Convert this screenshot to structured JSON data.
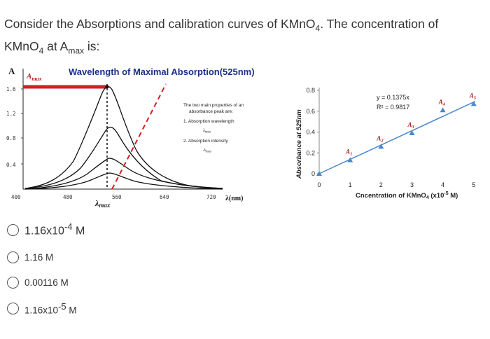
{
  "question": {
    "line1_pre": "Consider the Absorptions and calibration curves of KMnO",
    "line1_sub": "4",
    "line1_post": ". The concentration of",
    "line2_pre": "KMnO",
    "line2_sub": "4",
    "line2_mid": " at A",
    "line2_sub2": "max",
    "line2_post": " is:"
  },
  "spectrum_figure": {
    "title": "Wavelength of Maximal Absorption(525nm)",
    "y_axis_letter": "A",
    "amax_label": "A",
    "amax_sub": "max",
    "y_ticks": [
      "1.6",
      "1.2",
      "0.8",
      "0.4"
    ],
    "x_ticks": [
      "400",
      "480",
      "560",
      "640",
      "720"
    ],
    "x_unit": "λ(nm)",
    "lambda_max_label": "λ",
    "lambda_max_sub": "max",
    "note_line1": "The two main properties of an",
    "note_line2": "absorbance peak are:",
    "note_line3": "1.  Absorption wavelength",
    "note_line4": "λ",
    "note_line4_sub": "max",
    "note_line5": "2.  Absorption intensity",
    "note_line6": "A",
    "note_line6_sub": "max",
    "colors": {
      "title": "#1a2f8a",
      "red": "#d32020",
      "amax": "#b31b1b"
    }
  },
  "chart_data": {
    "type": "scatter",
    "xlabel_pre": "Cncentration of KMnO",
    "xlabel_sub": "4",
    "xlabel_mid": " (x10",
    "xlabel_sup": "-5",
    "xlabel_post": " M)",
    "ylabel": "Absorbance at 525nm",
    "x_ticks": [
      "0",
      "1",
      "2",
      "3",
      "4",
      "5"
    ],
    "y_ticks": [
      "0",
      "0.2",
      "0.4",
      "0.6",
      "0.8"
    ],
    "xlim": [
      0,
      5.3
    ],
    "ylim": [
      0,
      0.8
    ],
    "points": [
      {
        "label": "",
        "x": 0,
        "y": 0
      },
      {
        "label": "A1",
        "x": 1,
        "y": 0.13
      },
      {
        "label": "A2",
        "x": 2,
        "y": 0.26
      },
      {
        "label": "A3",
        "x": 3,
        "y": 0.39
      },
      {
        "label": "A4",
        "x": 4,
        "y": 0.61
      },
      {
        "label": "A5",
        "x": 5,
        "y": 0.67
      }
    ],
    "fit": {
      "slope": 0.1375,
      "intercept": 0
    },
    "equation": "y = 0.1375x",
    "r2": "R² = 0.9817",
    "color": "#4a86c8"
  },
  "options": [
    {
      "pre": "1.16x10",
      "sup": "-4",
      "post": " M"
    },
    {
      "pre": "1.16 M",
      "sup": "",
      "post": ""
    },
    {
      "pre": "0.00116 M",
      "sup": "",
      "post": ""
    },
    {
      "pre": "1.16x10",
      "sup": "-5",
      "post": " M"
    }
  ]
}
